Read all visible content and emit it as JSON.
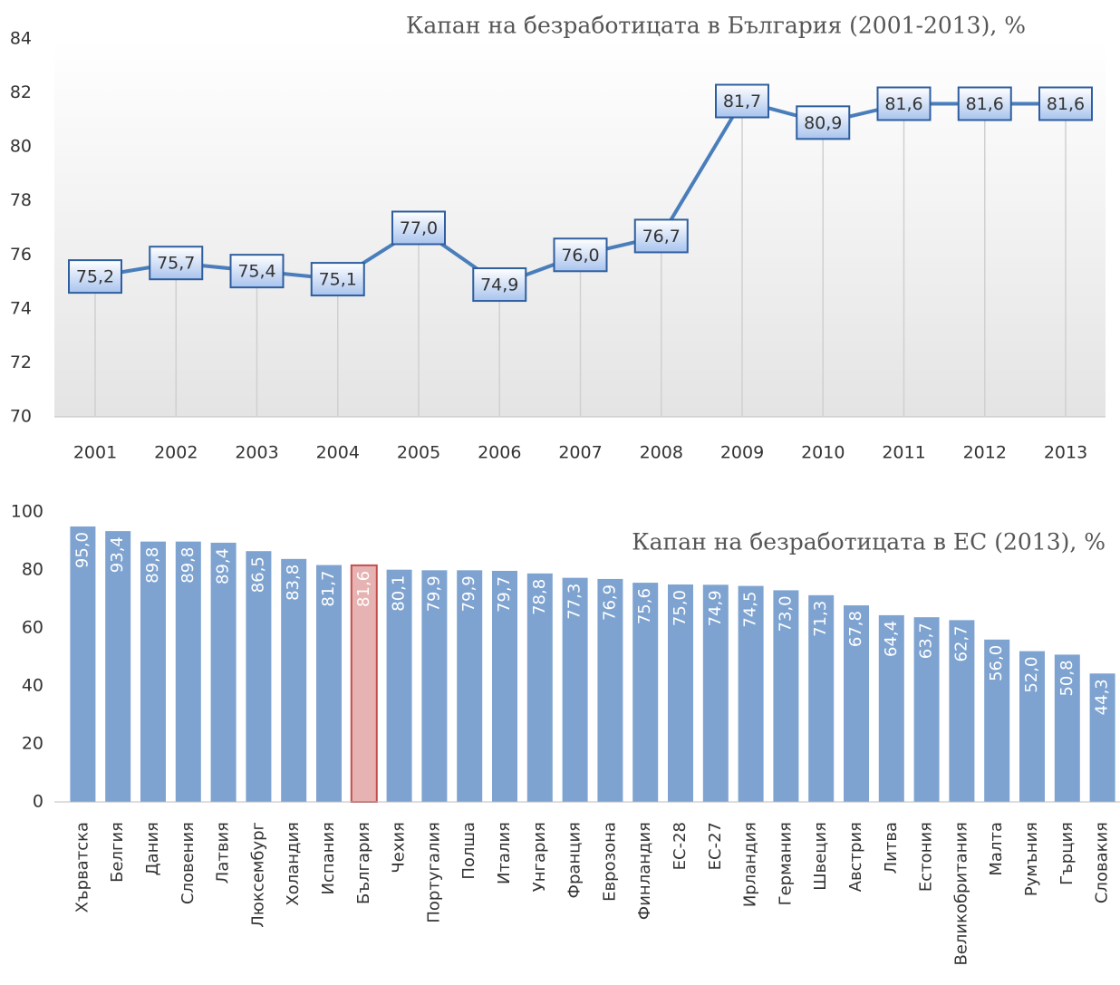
{
  "chart_data": [
    {
      "type": "line",
      "title": "Капан на безработицата в България (2001-2013), %",
      "categories": [
        "2001",
        "2002",
        "2003",
        "2004",
        "2005",
        "2006",
        "2007",
        "2008",
        "2009",
        "2010",
        "2011",
        "2012",
        "2013"
      ],
      "values": [
        75.2,
        75.7,
        75.4,
        75.1,
        77.0,
        74.9,
        76.0,
        76.7,
        81.7,
        80.9,
        81.6,
        81.6,
        81.6
      ],
      "value_labels": [
        "75,2",
        "75,7",
        "75,4",
        "75,1",
        "77,0",
        "74,9",
        "76,0",
        "76,7",
        "81,7",
        "80,9",
        "81,6",
        "81,6",
        "81,6"
      ],
      "color": "#4a7ebb",
      "ylim": [
        70,
        84
      ],
      "yticks": [
        70,
        72,
        74,
        76,
        78,
        80,
        82,
        84
      ]
    },
    {
      "type": "bar",
      "title": "Капан на безработицата в ЕС (2013), %",
      "categories": [
        "Хърватска",
        "Белгия",
        "Дания",
        "Словения",
        "Латвия",
        "Люксембург",
        "Холандия",
        "Испания",
        "България",
        "Чехия",
        "Португалия",
        "Полша",
        "Италия",
        "Унгария",
        "Франция",
        "Еврозона",
        "Финландия",
        "ЕС-28",
        "ЕС-27",
        "Ирландия",
        "Германия",
        "Швеция",
        "Австрия",
        "Литва",
        "Естония",
        "Великобритания",
        "Малта",
        "Румъния",
        "Гърция",
        "Словакия"
      ],
      "values": [
        95.0,
        93.4,
        89.8,
        89.8,
        89.4,
        86.5,
        83.8,
        81.7,
        81.6,
        80.1,
        79.9,
        79.9,
        79.7,
        78.8,
        77.3,
        76.9,
        75.6,
        75.0,
        74.9,
        74.5,
        73.0,
        71.3,
        67.8,
        64.4,
        63.7,
        62.7,
        56.0,
        52.0,
        50.8,
        44.3
      ],
      "value_labels": [
        "95,0",
        "93,4",
        "89,8",
        "89,8",
        "89,4",
        "86,5",
        "83,8",
        "81,7",
        "81,6",
        "80,1",
        "79,9",
        "79,9",
        "79,7",
        "78,8",
        "77,3",
        "76,9",
        "75,6",
        "75,0",
        "74,9",
        "74,5",
        "73,0",
        "71,3",
        "67,8",
        "64,4",
        "63,7",
        "62,7",
        "56,0",
        "52,0",
        "50,8",
        "44,3"
      ],
      "colors": [
        "#7ea3d0",
        "#7ea3d0",
        "#7ea3d0",
        "#7ea3d0",
        "#7ea3d0",
        "#7ea3d0",
        "#7ea3d0",
        "#7ea3d0",
        "#e6b2b2",
        "#7ea3d0",
        "#7ea3d0",
        "#7ea3d0",
        "#7ea3d0",
        "#7ea3d0",
        "#7ea3d0",
        "#7ea3d0",
        "#7ea3d0",
        "#7ea3d0",
        "#7ea3d0",
        "#7ea3d0",
        "#7ea3d0",
        "#7ea3d0",
        "#7ea3d0",
        "#7ea3d0",
        "#7ea3d0",
        "#7ea3d0",
        "#7ea3d0",
        "#7ea3d0",
        "#7ea3d0",
        "#7ea3d0"
      ],
      "ylim": [
        0,
        100
      ],
      "yticks": [
        0,
        20,
        40,
        60,
        80,
        100
      ]
    }
  ]
}
